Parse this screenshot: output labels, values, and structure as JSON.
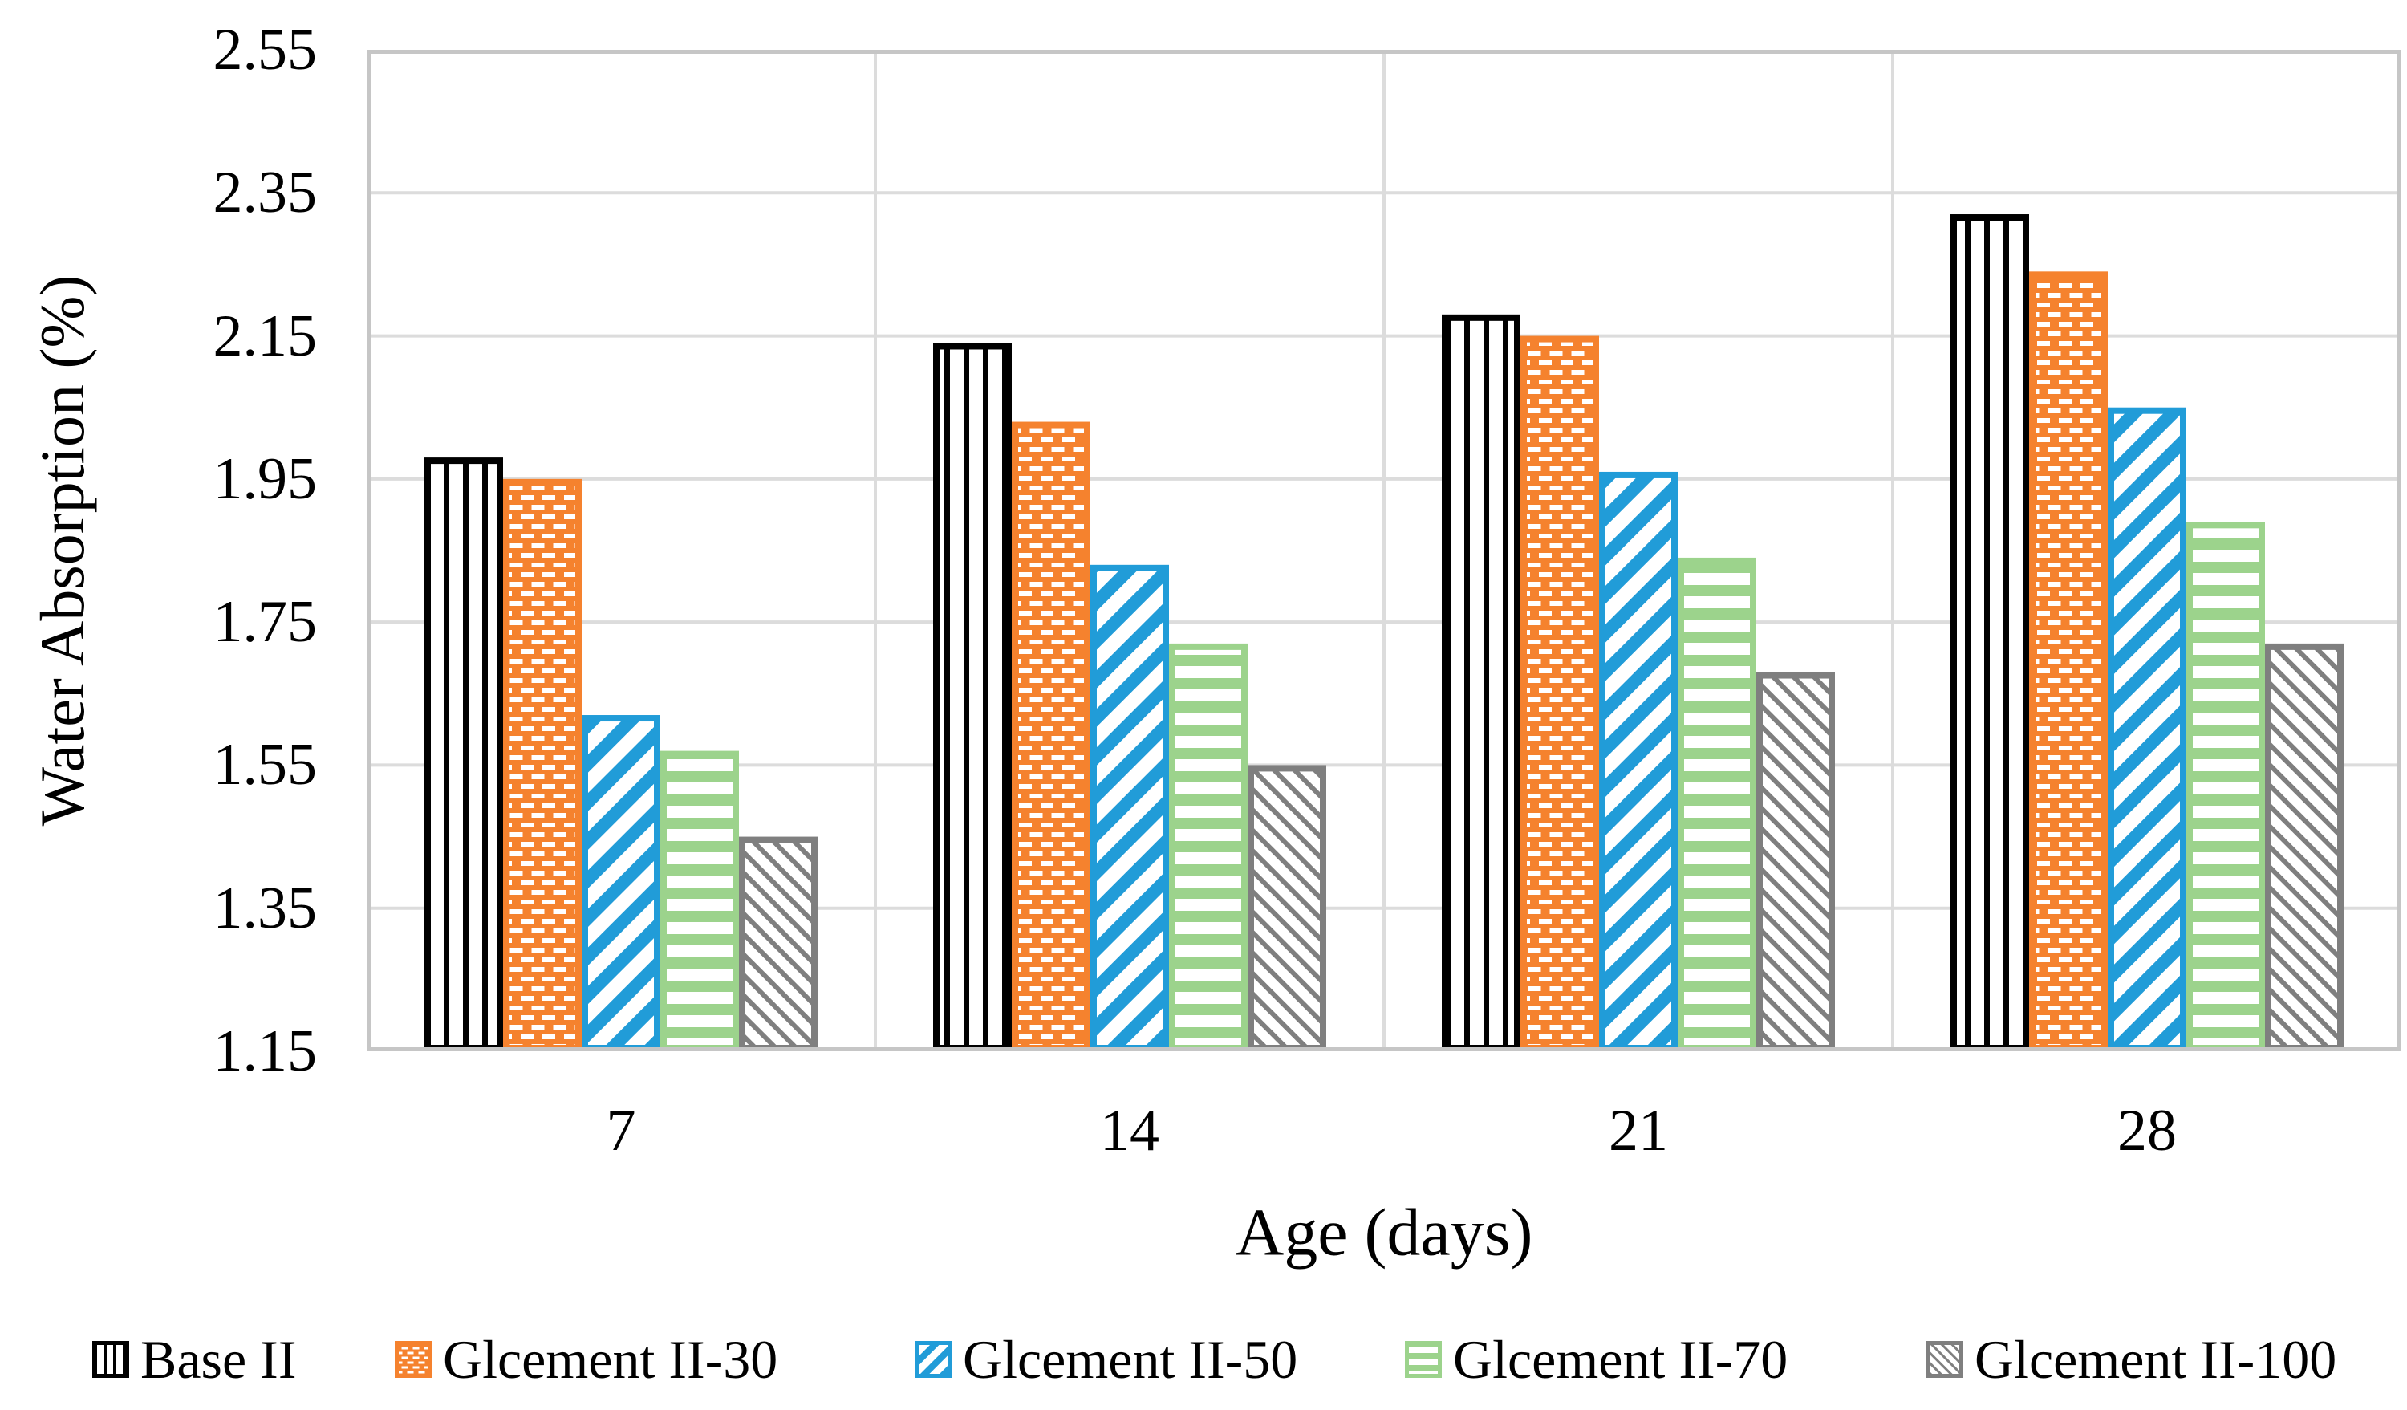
{
  "chart_data": {
    "type": "bar",
    "title": "",
    "xlabel": "Age (days)",
    "ylabel": "Water Absorption (%)",
    "categories": [
      "7",
      "14",
      "21",
      "28"
    ],
    "series": [
      {
        "name": "Base II",
        "color": "#000000",
        "pattern": "vertical-stripes",
        "values": [
          1.98,
          2.14,
          2.18,
          2.32
        ]
      },
      {
        "name": "Glcement II-30",
        "color": "#F5822E",
        "pattern": "brick-dash",
        "values": [
          1.95,
          2.03,
          2.15,
          2.24
        ]
      },
      {
        "name": "Glcement II-50",
        "color": "#219CD8",
        "pattern": "diagonal-up-stripes",
        "values": [
          1.62,
          1.83,
          1.96,
          2.05
        ]
      },
      {
        "name": "Glcement II-70",
        "color": "#9CD38C",
        "pattern": "horizontal-stripes",
        "values": [
          1.57,
          1.72,
          1.84,
          1.89
        ]
      },
      {
        "name": "Glcement II-100",
        "color": "#7F7F7F",
        "pattern": "diagonal-down-thin-stripes",
        "values": [
          1.45,
          1.55,
          1.68,
          1.72
        ]
      }
    ],
    "ylim": [
      1.15,
      2.55
    ],
    "ytick_step": 0.2,
    "ytick_labels": [
      "2.55",
      "2.35",
      "2.15",
      "1.95",
      "1.75",
      "1.55",
      "1.35",
      "1.15"
    ],
    "grid": true,
    "legend_position": "bottom"
  },
  "axes": {
    "y_title": "Water Absorption (%)",
    "x_title": "Age (days)"
  },
  "colors": {
    "gridline": "#DCDCDC",
    "axis_border": "#C6C6C6",
    "background": "#FFFFFF",
    "bar_orange": "#F5822E",
    "bar_blue": "#219CD8",
    "bar_green": "#9CD38C",
    "bar_gray": "#7F7F7F",
    "bar_black": "#000000"
  }
}
